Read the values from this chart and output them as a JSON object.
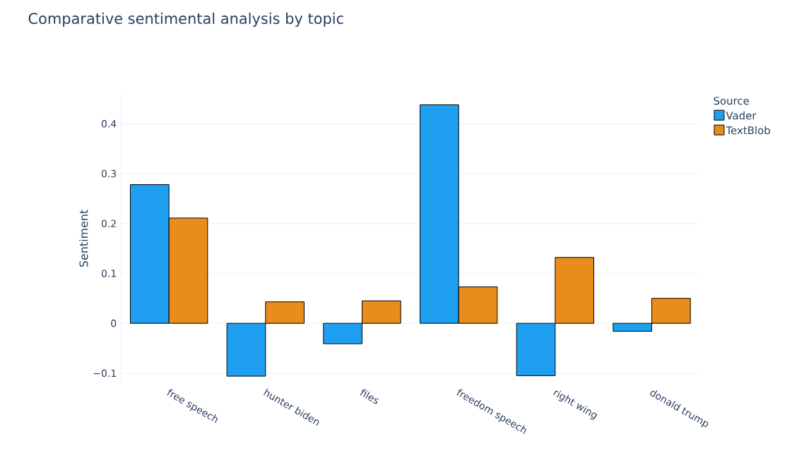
{
  "chart_data": {
    "type": "bar",
    "title": "Comparative sentimental analysis by topic",
    "ylabel": "Sentiment",
    "legend_title": "Source",
    "categories": [
      "free speech",
      "hunter biden",
      "files",
      "freedom speech",
      "right wing",
      "donald trump"
    ],
    "series": [
      {
        "name": "Vader",
        "color": "#1f9ff0",
        "values": [
          0.278,
          -0.106,
          -0.041,
          0.438,
          -0.105,
          -0.016
        ]
      },
      {
        "name": "TextBlob",
        "color": "#ea8c1c",
        "values": [
          0.211,
          0.043,
          0.045,
          0.073,
          0.132,
          0.05
        ]
      }
    ],
    "ylim": [
      -0.12,
      0.46
    ],
    "yticks": [
      {
        "value": -0.1,
        "label": "−0.1"
      },
      0,
      0.1,
      0.2,
      0.3,
      0.4
    ],
    "grid": "y",
    "legend": "top right"
  }
}
